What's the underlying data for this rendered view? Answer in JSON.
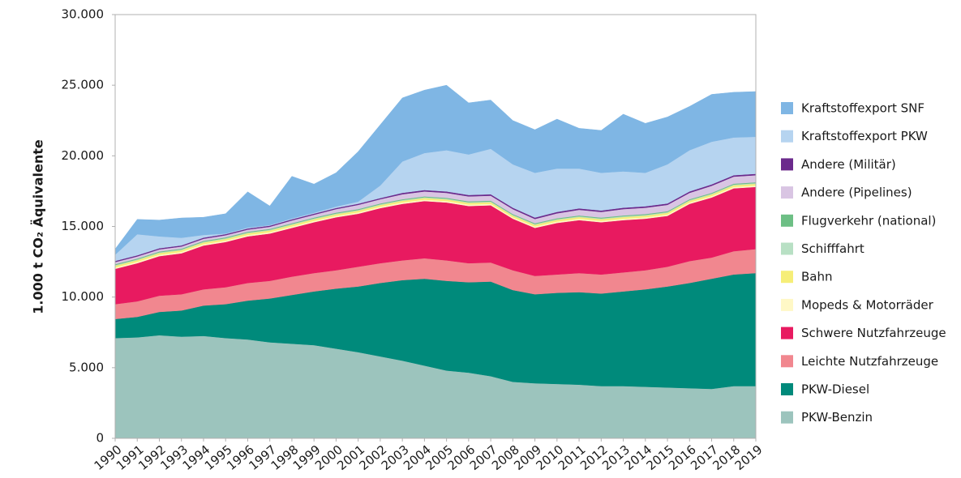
{
  "chart_data": {
    "type": "stacked_area",
    "y_label": "1.000 t CO₂ Äquivalente",
    "x": [
      1990,
      1991,
      1992,
      1993,
      1994,
      1995,
      1996,
      1997,
      1998,
      1999,
      2000,
      2001,
      2002,
      2003,
      2004,
      2005,
      2006,
      2007,
      2008,
      2009,
      2010,
      2011,
      2012,
      2013,
      2014,
      2015,
      2016,
      2017,
      2018,
      2019
    ],
    "xlim": [
      1990,
      2019
    ],
    "xticks": [
      1990,
      1991,
      1992,
      1993,
      1994,
      1995,
      1996,
      1997,
      1998,
      1999,
      2000,
      2001,
      2002,
      2003,
      2004,
      2005,
      2006,
      2007,
      2008,
      2009,
      2010,
      2011,
      2012,
      2013,
      2014,
      2015,
      2016,
      2017,
      2018,
      2019
    ],
    "ylim": [
      0,
      30000
    ],
    "yticks": [
      {
        "value": 0,
        "label": "0"
      },
      {
        "value": 5000,
        "label": "5.000"
      },
      {
        "value": 10000,
        "label": "10.000"
      },
      {
        "value": 15000,
        "label": "15.000"
      },
      {
        "value": 20000,
        "label": "20.000"
      },
      {
        "value": 25000,
        "label": "25.000"
      },
      {
        "value": 30000,
        "label": "30.000"
      }
    ],
    "legend": "right",
    "series": [
      {
        "name": "PKW-Benzin",
        "color": "#9cc4bd",
        "values": [
          7100,
          7150,
          7300,
          7200,
          7250,
          7100,
          7000,
          6800,
          6700,
          6600,
          6350,
          6100,
          5800,
          5500,
          5150,
          4800,
          4650,
          4400,
          4000,
          3900,
          3850,
          3800,
          3700,
          3700,
          3650,
          3600,
          3550,
          3500,
          3700,
          3700
        ]
      },
      {
        "name": "PKW-Diesel",
        "color": "#008a7b",
        "values": [
          1350,
          1450,
          1650,
          1850,
          2150,
          2400,
          2750,
          3100,
          3450,
          3800,
          4250,
          4650,
          5200,
          5700,
          6150,
          6350,
          6400,
          6700,
          6500,
          6300,
          6450,
          6550,
          6550,
          6700,
          6900,
          7150,
          7450,
          7800,
          7900,
          8000
        ]
      },
      {
        "name": "Leichte Nutzfahrzeuge",
        "color": "#f1878f",
        "values": [
          1050,
          1100,
          1150,
          1150,
          1150,
          1200,
          1250,
          1250,
          1300,
          1300,
          1300,
          1400,
          1400,
          1400,
          1450,
          1450,
          1350,
          1350,
          1400,
          1300,
          1300,
          1350,
          1350,
          1350,
          1350,
          1400,
          1550,
          1500,
          1650,
          1700
        ]
      },
      {
        "name": "Schwere Nutzfahrzeuge",
        "color": "#e81a60",
        "values": [
          2500,
          2700,
          2800,
          2900,
          3100,
          3200,
          3300,
          3350,
          3450,
          3600,
          3750,
          3750,
          3900,
          4000,
          4050,
          4100,
          4050,
          4050,
          3650,
          3400,
          3650,
          3750,
          3700,
          3700,
          3650,
          3600,
          4050,
          4250,
          4450,
          4400
        ]
      },
      {
        "name": "Mopeds & Motorräder",
        "color": "#fff8c6",
        "values": [
          100,
          100,
          100,
          100,
          100,
          100,
          100,
          100,
          100,
          100,
          100,
          100,
          100,
          100,
          100,
          100,
          100,
          100,
          100,
          100,
          100,
          100,
          100,
          100,
          100,
          100,
          100,
          100,
          100,
          100
        ]
      },
      {
        "name": "Bahn",
        "color": "#f6ee78",
        "values": [
          120,
          120,
          120,
          120,
          120,
          120,
          120,
          120,
          120,
          120,
          120,
          120,
          120,
          120,
          120,
          120,
          120,
          120,
          120,
          120,
          120,
          120,
          120,
          120,
          120,
          120,
          120,
          120,
          120,
          120
        ]
      },
      {
        "name": "Schifffahrt",
        "color": "#b8e0c4",
        "values": [
          50,
          50,
          50,
          50,
          50,
          50,
          50,
          50,
          50,
          50,
          50,
          50,
          50,
          50,
          50,
          50,
          50,
          50,
          50,
          50,
          50,
          50,
          50,
          50,
          50,
          50,
          50,
          50,
          50,
          50
        ]
      },
      {
        "name": "Flugverkehr (national)",
        "color": "#6dbf85",
        "values": [
          60,
          60,
          60,
          60,
          60,
          60,
          60,
          60,
          60,
          60,
          60,
          60,
          60,
          60,
          60,
          60,
          60,
          60,
          60,
          60,
          60,
          60,
          60,
          60,
          60,
          60,
          60,
          60,
          60,
          60
        ]
      },
      {
        "name": "Andere (Pipelines)",
        "color": "#d9c5e3",
        "values": [
          150,
          150,
          150,
          150,
          150,
          150,
          150,
          150,
          200,
          200,
          250,
          300,
          300,
          350,
          350,
          350,
          350,
          350,
          350,
          300,
          350,
          400,
          400,
          450,
          450,
          450,
          450,
          500,
          500,
          500
        ]
      },
      {
        "name": "Andere (Militär)",
        "color": "#6b2a8c",
        "values": [
          80,
          80,
          80,
          80,
          80,
          80,
          80,
          80,
          80,
          80,
          80,
          80,
          80,
          100,
          100,
          100,
          100,
          100,
          100,
          100,
          100,
          100,
          100,
          100,
          100,
          100,
          100,
          100,
          100,
          100
        ]
      },
      {
        "name": "Kraftstoffexport PKW",
        "color": "#b6d4f0",
        "values": [
          440,
          1490,
          840,
          540,
          190,
          40,
          60,
          40,
          60,
          60,
          100,
          150,
          890,
          2220,
          2620,
          2920,
          2870,
          3220,
          3070,
          3170,
          3070,
          2820,
          2670,
          2570,
          2370,
          2770,
          2920,
          3020,
          2670,
          2620
        ]
      },
      {
        "name": "Kraftstoffexport SNF",
        "color": "#7fb6e4",
        "values": [
          400,
          1050,
          1150,
          1400,
          1250,
          1400,
          2530,
          1350,
          2980,
          2030,
          2390,
          3540,
          4300,
          4500,
          4450,
          4600,
          3650,
          3450,
          3100,
          3050,
          3500,
          2850,
          3000,
          4050,
          3500,
          3350,
          3100,
          3350,
          3200,
          3200
        ]
      }
    ]
  }
}
